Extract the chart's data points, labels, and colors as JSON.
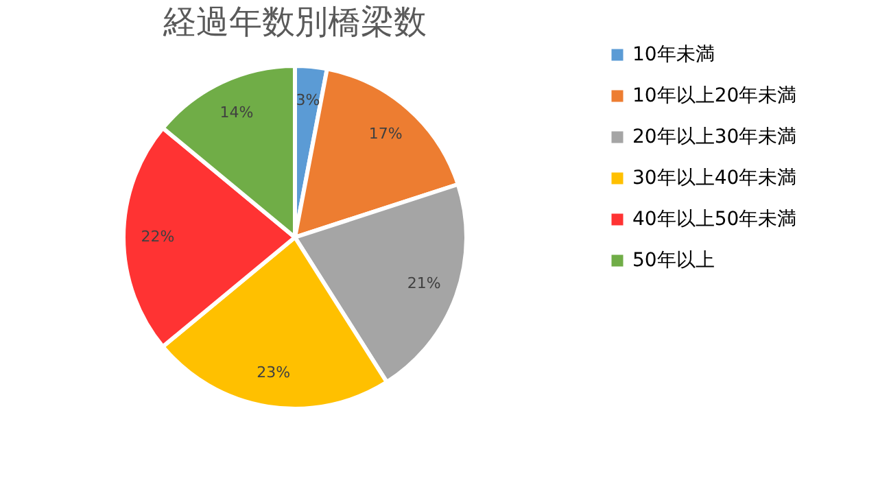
{
  "chart_data": {
    "type": "pie",
    "title": "経過年数別橋梁数",
    "categories": [
      "10年未満",
      "10年以上20年未満",
      "20年以上30年未満",
      "30年以上40年未満",
      "40年以上50年未満",
      "50年以上"
    ],
    "values": [
      3,
      17,
      21,
      23,
      22,
      14
    ],
    "colors": [
      "#5b9bd5",
      "#ed7d31",
      "#a5a5a5",
      "#ffc000",
      "#ff3333",
      "#70ad47"
    ],
    "value_labels": [
      "3%",
      "17%",
      "21%",
      "23%",
      "22%",
      "14%"
    ],
    "legend": "right"
  }
}
